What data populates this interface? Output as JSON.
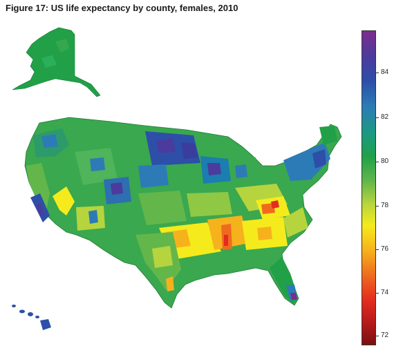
{
  "title": "Figure 17: US life expectancy by county, females, 2010",
  "legend": {
    "ticks": [
      "84",
      "82",
      "80",
      "78",
      "76",
      "74",
      "72"
    ],
    "colors": {
      "high": "#7b2d8e",
      "upper": "#2c7bb6",
      "mid_high": "#21a048",
      "mid": "#f5eb1c",
      "low": "#ef6a1f",
      "lower": "#e32b1e",
      "lowest": "#7a1010"
    }
  }
}
